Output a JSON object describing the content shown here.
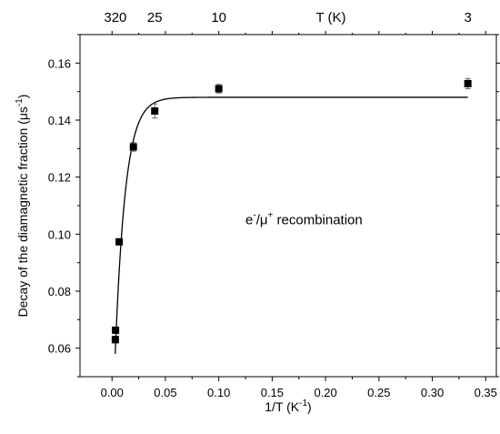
{
  "chart_data": {
    "type": "scatter",
    "xlabel": "1/T (K",
    "xlabel_sup": "-1",
    "xlabel_end": ")",
    "ylabel": "Decay of the diamagnetic fraction (μs",
    "ylabel_sup": "-1",
    "ylabel_end": ")",
    "xlim": [
      -0.03,
      0.36
    ],
    "ylim": [
      0.05,
      0.17
    ],
    "xticks": [
      0.0,
      0.05,
      0.1,
      0.15,
      0.2,
      0.25,
      0.3,
      0.35
    ],
    "xtick_labels": [
      "0.00",
      "0.05",
      "0.10",
      "0.15",
      "0.20",
      "0.25",
      "0.30",
      "0.35"
    ],
    "yticks": [
      0.06,
      0.08,
      0.1,
      0.12,
      0.14,
      0.16
    ],
    "ytick_labels": [
      "0.06",
      "0.08",
      "0.10",
      "0.12",
      "0.14",
      "0.16"
    ],
    "top_axis": {
      "title": "T (K)",
      "title_x": 0.205,
      "ticks": [
        {
          "label": "320",
          "x": 0.003125
        },
        {
          "label": "25",
          "x": 0.04
        },
        {
          "label": "10",
          "x": 0.1
        },
        {
          "label": "3",
          "x": 0.3333
        }
      ]
    },
    "annotation": {
      "parts": [
        "e",
        "-",
        "/μ",
        "+",
        " recombination"
      ],
      "x": 0.125,
      "y": 0.1035
    },
    "points": [
      {
        "x": 0.0031,
        "y": 0.063,
        "err": 0.0012
      },
      {
        "x": 0.0033,
        "y": 0.0663,
        "err": 0.001
      },
      {
        "x": 0.0067,
        "y": 0.0973,
        "err": 0.001
      },
      {
        "x": 0.02,
        "y": 0.1306,
        "err": 0.0015
      },
      {
        "x": 0.04,
        "y": 0.1432,
        "err": 0.0025
      },
      {
        "x": 0.1,
        "y": 0.151,
        "err": 0.0015
      },
      {
        "x": 0.3333,
        "y": 0.1528,
        "err": 0.0018
      }
    ],
    "fit": {
      "x_start": 0.003,
      "x_end": 0.3333,
      "plateau": 0.148,
      "start_value": 0.058,
      "rate": 105
    }
  }
}
